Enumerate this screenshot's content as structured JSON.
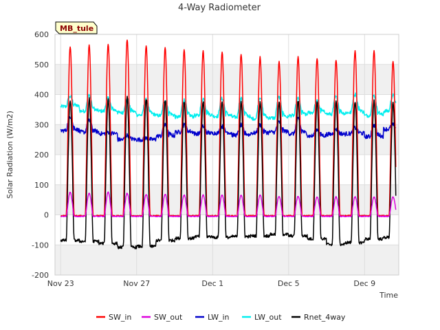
{
  "chart_data": {
    "type": "line",
    "title": "4-Way Radiometer",
    "xlabel": "Time",
    "ylabel": "Solar Radiation (W/m2)",
    "site_label": "MB_tule",
    "ylim": [
      -200,
      600
    ],
    "yticks": [
      -200,
      -100,
      0,
      100,
      200,
      300,
      400,
      500,
      600
    ],
    "xlim_days": [
      -0.3,
      17.8
    ],
    "xticks": [
      {
        "label": "Nov 23",
        "day": 0
      },
      {
        "label": "Nov 27",
        "day": 4
      },
      {
        "label": "Dec 1",
        "day": 8
      },
      {
        "label": "Dec 5",
        "day": 12
      },
      {
        "label": "Dec 9",
        "day": 16
      }
    ],
    "grid": true,
    "legend_position": "bottom",
    "days": [
      "Nov 23",
      "Nov 24",
      "Nov 25",
      "Nov 26",
      "Nov 27",
      "Nov 28",
      "Nov 29",
      "Nov 30",
      "Dec 1",
      "Dec 2",
      "Dec 3",
      "Dec 4",
      "Dec 5",
      "Dec 6",
      "Dec 7",
      "Dec 8",
      "Dec 9",
      "Dec 10"
    ],
    "series": [
      {
        "name": "SW_in",
        "color": "#ff0000",
        "daily_peak": [
          560,
          565,
          568,
          583,
          562,
          555,
          550,
          545,
          540,
          535,
          525,
          510,
          525,
          520,
          515,
          545,
          545,
          510
        ],
        "night_value": -3
      },
      {
        "name": "SW_out",
        "color": "#dd00dd",
        "daily_peak": [
          75,
          72,
          75,
          72,
          68,
          68,
          66,
          66,
          66,
          65,
          65,
          62,
          62,
          60,
          60,
          60,
          60,
          60
        ],
        "night_value": -5
      },
      {
        "name": "LW_in",
        "color": "#0000cc",
        "night_level": [
          280,
          275,
          270,
          250,
          250,
          262,
          275,
          270,
          272,
          265,
          272,
          275,
          270,
          262,
          268,
          270,
          260,
          285
        ],
        "day_level": [
          330,
          315,
          275,
          265,
          255,
          300,
          300,
          295,
          295,
          300,
          300,
          310,
          320,
          285,
          285,
          290,
          300,
          300
        ]
      },
      {
        "name": "LW_out",
        "color": "#00eeee",
        "night_level": [
          360,
          345,
          345,
          340,
          332,
          330,
          325,
          330,
          328,
          325,
          320,
          322,
          330,
          340,
          335,
          340,
          330,
          345
        ],
        "day_level": [
          395,
          400,
          390,
          385,
          385,
          385,
          385,
          390,
          390,
          390,
          395,
          395,
          390,
          380,
          395,
          405,
          400,
          400
        ]
      },
      {
        "name": "Rnet_4way",
        "color": "#000000",
        "daily_peak": [
          380,
          385,
          385,
          390,
          385,
          380,
          378,
          378,
          378,
          378,
          376,
          375,
          380,
          375,
          378,
          378,
          380,
          370
        ],
        "night_value": [
          -85,
          -88,
          -95,
          -108,
          -105,
          -85,
          -78,
          -72,
          -75,
          -72,
          -70,
          -65,
          -70,
          -80,
          -98,
          -92,
          -80,
          -75
        ]
      }
    ]
  }
}
